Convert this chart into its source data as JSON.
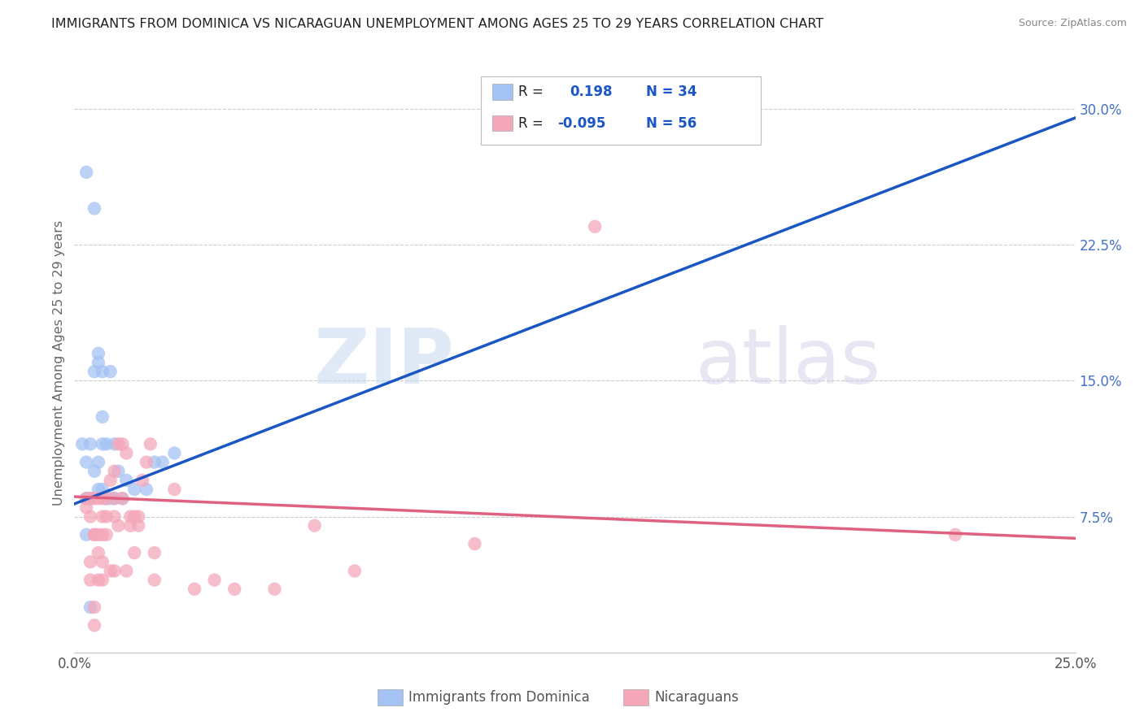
{
  "title": "IMMIGRANTS FROM DOMINICA VS NICARAGUAN UNEMPLOYMENT AMONG AGES 25 TO 29 YEARS CORRELATION CHART",
  "source": "Source: ZipAtlas.com",
  "ylabel": "Unemployment Among Ages 25 to 29 years",
  "xlim": [
    0.0,
    0.25
  ],
  "ylim": [
    0.0,
    0.32
  ],
  "xtick_vals": [
    0.0,
    0.05,
    0.1,
    0.15,
    0.2,
    0.25
  ],
  "xtick_labels": [
    "0.0%",
    "",
    "",
    "",
    "",
    "25.0%"
  ],
  "ytick_vals": [
    0.0,
    0.075,
    0.15,
    0.225,
    0.3
  ],
  "ytick_labels": [
    "",
    "7.5%",
    "15.0%",
    "22.5%",
    "30.0%"
  ],
  "blue_color": "#a4c2f4",
  "pink_color": "#f4a7b9",
  "blue_line_color": "#1a56c4",
  "pink_line_color": "#e06080",
  "dashed_line_color": "#a4c2f4",
  "watermark_zip": "ZIP",
  "watermark_atlas": "atlas",
  "legend_label1": "Immigrants from Dominica",
  "legend_label2": "Nicaraguans",
  "blue_scatter_x": [
    0.003,
    0.005,
    0.002,
    0.003,
    0.003,
    0.004,
    0.004,
    0.005,
    0.005,
    0.006,
    0.006,
    0.006,
    0.006,
    0.007,
    0.007,
    0.007,
    0.007,
    0.008,
    0.008,
    0.008,
    0.009,
    0.009,
    0.01,
    0.01,
    0.011,
    0.012,
    0.013,
    0.015,
    0.018,
    0.02,
    0.022,
    0.025,
    0.003,
    0.004
  ],
  "blue_scatter_y": [
    0.265,
    0.245,
    0.115,
    0.105,
    0.065,
    0.025,
    0.115,
    0.155,
    0.1,
    0.165,
    0.16,
    0.105,
    0.09,
    0.155,
    0.13,
    0.115,
    0.09,
    0.115,
    0.085,
    0.085,
    0.155,
    0.085,
    0.115,
    0.085,
    0.1,
    0.085,
    0.095,
    0.09,
    0.09,
    0.105,
    0.105,
    0.11,
    0.085,
    0.085
  ],
  "pink_scatter_x": [
    0.003,
    0.003,
    0.004,
    0.004,
    0.004,
    0.004,
    0.005,
    0.005,
    0.005,
    0.005,
    0.005,
    0.006,
    0.006,
    0.006,
    0.006,
    0.007,
    0.007,
    0.007,
    0.007,
    0.007,
    0.008,
    0.008,
    0.008,
    0.009,
    0.009,
    0.01,
    0.01,
    0.01,
    0.01,
    0.011,
    0.011,
    0.012,
    0.012,
    0.013,
    0.013,
    0.014,
    0.014,
    0.015,
    0.015,
    0.016,
    0.016,
    0.017,
    0.018,
    0.019,
    0.02,
    0.02,
    0.025,
    0.03,
    0.035,
    0.04,
    0.05,
    0.06,
    0.07,
    0.1,
    0.13,
    0.22
  ],
  "pink_scatter_y": [
    0.085,
    0.08,
    0.085,
    0.075,
    0.05,
    0.04,
    0.085,
    0.065,
    0.065,
    0.025,
    0.015,
    0.085,
    0.065,
    0.055,
    0.04,
    0.085,
    0.075,
    0.065,
    0.05,
    0.04,
    0.085,
    0.075,
    0.065,
    0.095,
    0.045,
    0.1,
    0.085,
    0.075,
    0.045,
    0.115,
    0.07,
    0.115,
    0.085,
    0.11,
    0.045,
    0.075,
    0.07,
    0.075,
    0.055,
    0.075,
    0.07,
    0.095,
    0.105,
    0.115,
    0.055,
    0.04,
    0.09,
    0.035,
    0.04,
    0.035,
    0.035,
    0.07,
    0.045,
    0.06,
    0.235,
    0.065
  ],
  "blue_trend_x": [
    0.0,
    0.25
  ],
  "blue_trend_y": [
    0.082,
    0.295
  ],
  "pink_trend_x": [
    0.0,
    0.25
  ],
  "pink_trend_y": [
    0.086,
    0.063
  ],
  "dashed_trend_x": [
    0.025,
    0.25
  ],
  "dashed_trend_y": [
    0.103,
    0.295
  ]
}
